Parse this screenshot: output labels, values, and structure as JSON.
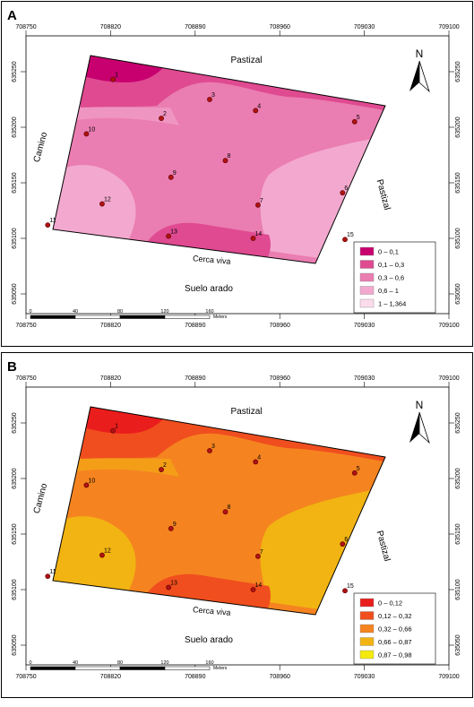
{
  "panels": [
    {
      "letter": "A",
      "colors": [
        "#c8006f",
        "#df4a91",
        "#ea7db1",
        "#f3a9cf",
        "#fcdcec"
      ],
      "legend": [
        {
          "label": "0 – 0,1",
          "color": "#c8006f"
        },
        {
          "label": "0,1 – 0,3",
          "color": "#df4a91"
        },
        {
          "label": "0,3 – 0,6",
          "color": "#ea7db1"
        },
        {
          "label": "0,6 – 1",
          "color": "#f3a9cf"
        },
        {
          "label": "1 – 1,364",
          "color": "#fcdcec"
        }
      ]
    },
    {
      "letter": "B",
      "colors": [
        "#ea1d1d",
        "#f04e1e",
        "#f58420",
        "#f2b412",
        "#f3ea0c"
      ],
      "legend": [
        {
          "label": "0 – 0,12",
          "color": "#ea1d1d"
        },
        {
          "label": "0,12 – 0,32",
          "color": "#f04e1e"
        },
        {
          "label": "0,32 – 0,66",
          "color": "#f58420"
        },
        {
          "label": "0,66 – 0,87",
          "color": "#f2b412"
        },
        {
          "label": "0,87 – 0,98",
          "color": "#f3ea0c"
        }
      ]
    }
  ],
  "x_ticks": [
    "708750",
    "708820",
    "708890",
    "708960",
    "709030",
    "709100"
  ],
  "y_ticks": [
    "635250",
    "635200",
    "635150",
    "635100",
    "635050"
  ],
  "labels": {
    "top": "Pastizal",
    "left": "Camino",
    "right": "Pastizal",
    "bottom_fence": "Cerca viva",
    "bottom_field": "Suelo arado"
  },
  "north": "N",
  "scale": {
    "ticks": [
      "0",
      "40",
      "80",
      "120",
      "160"
    ],
    "unit": "Meters"
  },
  "points": [
    {
      "id": "1",
      "x": 708822,
      "y": 635243
    },
    {
      "id": "2",
      "x": 708862,
      "y": 635208
    },
    {
      "id": "3",
      "x": 708902,
      "y": 635225
    },
    {
      "id": "4",
      "x": 708940,
      "y": 635215
    },
    {
      "id": "5",
      "x": 709022,
      "y": 635205
    },
    {
      "id": "6",
      "x": 709012,
      "y": 635141
    },
    {
      "id": "7",
      "x": 708942,
      "y": 635130
    },
    {
      "id": "8",
      "x": 708915,
      "y": 635170
    },
    {
      "id": "9",
      "x": 708870,
      "y": 635155
    },
    {
      "id": "10",
      "x": 708800,
      "y": 635194
    },
    {
      "id": "11",
      "x": 708768,
      "y": 635112
    },
    {
      "id": "12",
      "x": 708813,
      "y": 635131
    },
    {
      "id": "13",
      "x": 708868,
      "y": 635102
    },
    {
      "id": "14",
      "x": 708938,
      "y": 635100
    },
    {
      "id": "15",
      "x": 709014,
      "y": 635099
    }
  ]
}
